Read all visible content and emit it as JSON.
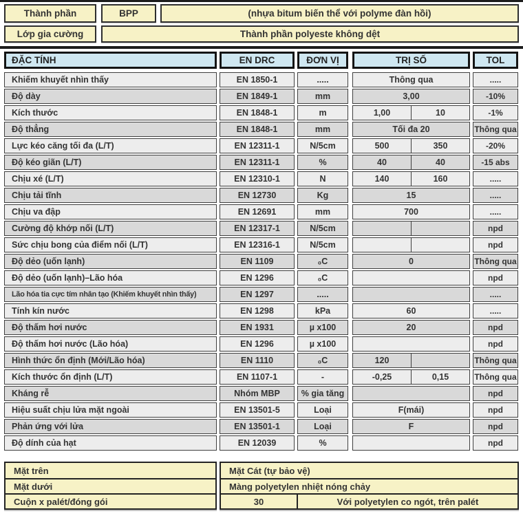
{
  "colors": {
    "section_yellow": "#f7f2c6",
    "header_blue": "#cfe7f1",
    "row_light": "#ededed",
    "row_dark": "#d9d9d9",
    "border_dark": "#1c1c1c"
  },
  "top": {
    "rows": [
      {
        "label": "Thành phần",
        "code": "BPP",
        "desc": "(nhựa bitum biến thể với polyme đàn hồi)"
      },
      {
        "label": "Lớp gia cường",
        "desc": "Thành phần polyeste không dệt"
      }
    ]
  },
  "header": {
    "property": "ĐẶC TÍNH",
    "standard": "EN DRC",
    "unit": "ĐƠN VỊ",
    "value": "TRỊ SỐ",
    "tol": "TOL"
  },
  "rows": [
    {
      "name": "Khiếm khuyết nhìn thấy",
      "standard": "EN 1850-1",
      "unit": ".....",
      "split": false,
      "value": "Thông qua",
      "value2": "",
      "tol": "....."
    },
    {
      "name": "Độ dày",
      "standard": "EN 1849-1",
      "unit": "mm",
      "split": false,
      "value": "3,00",
      "value2": "",
      "tol": "-10%"
    },
    {
      "name": "Kích thước",
      "standard": "EN 1848-1",
      "unit": "m",
      "split": true,
      "value": "1,00",
      "value2": "10",
      "tol": "-1%"
    },
    {
      "name": "Độ thẳng",
      "standard": "EN 1848-1",
      "unit": "mm",
      "split": false,
      "value": "Tối đa 20",
      "value2": "",
      "tol": "Thông qua"
    },
    {
      "name": "Lực kéo căng tối đa (L/T)",
      "standard": "EN 12311-1",
      "unit": "N/5cm",
      "split": true,
      "value": "500",
      "value2": "350",
      "tol": "-20%"
    },
    {
      "name": "Độ kéo giãn (L/T)",
      "standard": "EN 12311-1",
      "unit": "%",
      "split": true,
      "value": "40",
      "value2": "40",
      "tol": "-15 abs"
    },
    {
      "name": "Chịu xé (L/T)",
      "standard": "EN 12310-1",
      "unit": "N",
      "split": true,
      "value": "140",
      "value2": "160",
      "tol": "....."
    },
    {
      "name": "Chịu tải tĩnh",
      "standard": "EN 12730",
      "unit": "Kg",
      "split": false,
      "value": "15",
      "value2": "",
      "tol": "....."
    },
    {
      "name": "Chịu va đập",
      "standard": "EN 12691",
      "unit": "mm",
      "split": false,
      "value": "700",
      "value2": "",
      "tol": "....."
    },
    {
      "name": "Cường độ khớp nối (L/T)",
      "standard": "EN 12317-1",
      "unit": "N/5cm",
      "split": true,
      "value": "",
      "value2": "",
      "tol": "npd"
    },
    {
      "name": "Sức chịu bong của điểm nối (L/T)",
      "standard": "EN 12316-1",
      "unit": "N/5cm",
      "split": true,
      "value": "",
      "value2": "",
      "tol": "npd"
    },
    {
      "name": "Độ dẻo (uốn lạnh)",
      "standard": "EN 1109",
      "unit": "₀C",
      "split": false,
      "value": "0",
      "value2": "",
      "tol": "Thông qua"
    },
    {
      "name": "Độ dẻo (uốn lạnh)–Lão hóa",
      "standard": "EN 1296",
      "unit": "₀C",
      "split": false,
      "value": "",
      "value2": "",
      "tol": "npd"
    },
    {
      "name": "Lão hóa tia cực tím nhân tạo (Khiếm khuyết nhìn thấy)",
      "standard": "EN 1297",
      "unit": ".....",
      "split": false,
      "value": "",
      "value2": "",
      "tol": "....."
    },
    {
      "name": "Tính kín nước",
      "standard": "EN 1298",
      "unit": "kPa",
      "split": false,
      "value": "60",
      "value2": "",
      "tol": "....."
    },
    {
      "name": "Độ thấm hơi nước",
      "standard": "EN 1931",
      "unit": "µ x100",
      "split": false,
      "value": "20",
      "value2": "",
      "tol": "npd"
    },
    {
      "name": "Độ thấm hơi nước (Lão hóa)",
      "standard": "EN 1296",
      "unit": "µ x100",
      "split": false,
      "value": "",
      "value2": "",
      "tol": "npd"
    },
    {
      "name": "Hình thức ổn định (Mới/Lão hóa)",
      "standard": "EN 1110",
      "unit": "₀C",
      "split": true,
      "value": "120",
      "value2": "",
      "tol": "Thông qua"
    },
    {
      "name": "Kích thước ổn định (L/T)",
      "standard": "EN 1107-1",
      "unit": "-",
      "split": true,
      "value": "-0,25",
      "value2": "0,15",
      "tol": "Thông qua"
    },
    {
      "name": "Kháng rễ",
      "standard": "Nhóm MBP",
      "unit": "% gia tăng",
      "split": false,
      "value": "",
      "value2": "",
      "tol": "npd"
    },
    {
      "name": "Hiệu suất chịu lửa mặt ngoài",
      "standard": "EN 13501-5",
      "unit": "Loại",
      "split": false,
      "value": "F(mái)",
      "value2": "",
      "tol": "npd"
    },
    {
      "name": "Phản ứng với lửa",
      "standard": "EN 13501-1",
      "unit": "Loại",
      "split": false,
      "value": "F",
      "value2": "",
      "tol": "npd"
    },
    {
      "name": "Độ dính của hạt",
      "standard": "EN 12039",
      "unit": "%",
      "split": false,
      "value": "",
      "value2": "",
      "tol": "npd"
    }
  ],
  "footer": {
    "rows": [
      {
        "label": "Mặt trên",
        "value": "Mặt Cát (tự bảo vệ)"
      },
      {
        "label": "Mặt dưới",
        "value": "Màng polyetylen nhiệt nóng chảy"
      },
      {
        "label": "Cuộn x palét/đóng gói",
        "value": "30",
        "value2": "Với polyetylen co ngót, trên palét"
      }
    ]
  }
}
